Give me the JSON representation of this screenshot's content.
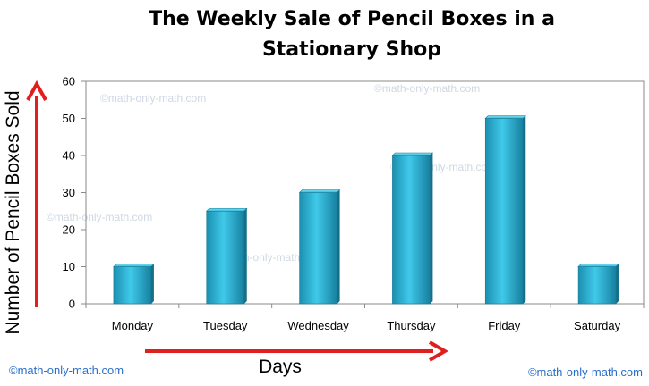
{
  "chart_data": {
    "type": "bar",
    "title_lines": [
      "The Weekly Sale of Pencil Boxes in a",
      "Stationary Shop"
    ],
    "xlabel": "Days",
    "ylabel": "Number of Pencil Boxes Sold",
    "categories": [
      "Monday",
      "Tuesday",
      "Wednesday",
      "Thursday",
      "Friday",
      "Saturday"
    ],
    "values": [
      10,
      25,
      30,
      40,
      50,
      10
    ],
    "ylim": [
      0,
      60
    ],
    "yticks": [
      0,
      10,
      20,
      30,
      40,
      50,
      60
    ],
    "grid": false,
    "legend": "none",
    "bar_color": "#29b5d8",
    "arrow_color": "#e0201f"
  },
  "watermarks": {
    "plot": [
      "©math-only-math.com",
      "©math-only-math.com",
      "©math-only-math.com",
      "©math-only-math.com",
      "©math-only-math.com"
    ],
    "bottom_left": "©math-only-math.com",
    "bottom_right": "©math-only-math.com"
  }
}
